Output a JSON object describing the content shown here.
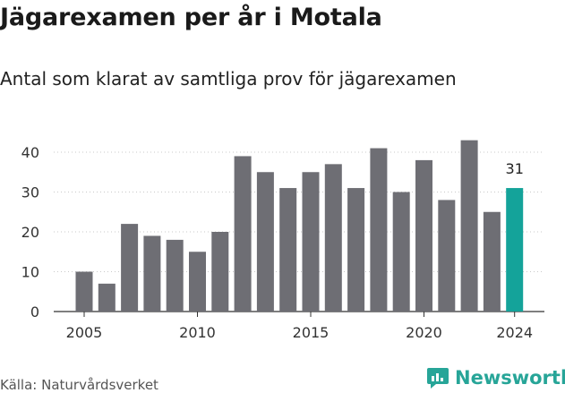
{
  "header": {
    "title": "Jägarexamen per år i Motala",
    "subtitle": "Antal som klarat av samtliga prov för jägarexamen"
  },
  "footer": {
    "source": "Källa: Naturvårdsverket",
    "brand": "Newsworthy"
  },
  "colors": {
    "bar": "#6e6e74",
    "highlight": "#14a39a",
    "brand": "#27a598"
  },
  "chart_data": {
    "type": "bar",
    "x": [
      2005,
      2006,
      2007,
      2008,
      2009,
      2010,
      2011,
      2012,
      2013,
      2014,
      2015,
      2016,
      2017,
      2018,
      2019,
      2020,
      2021,
      2022,
      2023,
      2024
    ],
    "values": [
      10,
      7,
      22,
      19,
      18,
      15,
      20,
      39,
      35,
      31,
      35,
      37,
      31,
      41,
      30,
      38,
      28,
      43,
      25,
      31
    ],
    "highlight_index": 19,
    "highlight_label": "31",
    "xticks": [
      2005,
      2010,
      2015,
      2020,
      2024
    ],
    "yticks": [
      0,
      10,
      20,
      30,
      40
    ],
    "ylim": [
      0,
      45
    ],
    "grid": "horizontal dotted",
    "title": "Jägarexamen per år i Motala",
    "xlabel": "",
    "ylabel": ""
  }
}
